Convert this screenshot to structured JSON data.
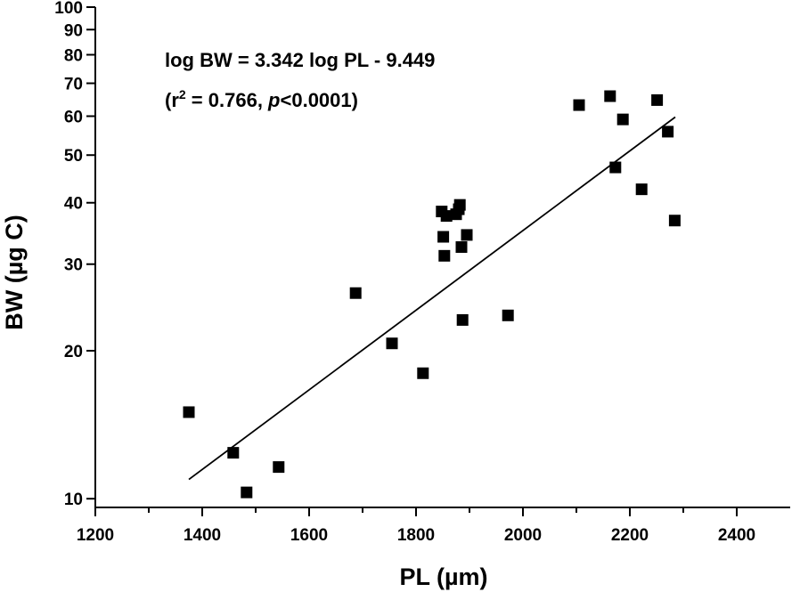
{
  "chart_data": {
    "type": "scatter",
    "xlabel": "PL (µm)",
    "ylabel": "BW (µg C)",
    "xlim": [
      1200,
      2500
    ],
    "ylim": [
      9.6,
      100
    ],
    "y_scale": "log",
    "x_ticks": [
      1200,
      1400,
      1600,
      1800,
      2000,
      2200,
      2400
    ],
    "x_tick_labels": [
      "1200",
      "1400",
      "1600",
      "1800",
      "2000",
      "2200",
      "2400"
    ],
    "x_minor_ticks": [
      1300,
      1500,
      1700,
      1900,
      2100,
      2300
    ],
    "y_ticks": [
      10,
      20,
      30,
      40,
      50,
      60,
      70,
      80,
      90,
      100
    ],
    "y_tick_labels": [
      "10",
      "20",
      "30",
      "40",
      "50",
      "60",
      "70",
      "80",
      "90",
      "100"
    ],
    "points": [
      {
        "x": 1375,
        "y": 15.0
      },
      {
        "x": 1458,
        "y": 12.4
      },
      {
        "x": 1483,
        "y": 10.3
      },
      {
        "x": 1543,
        "y": 11.6
      },
      {
        "x": 1687,
        "y": 26.2
      },
      {
        "x": 1755,
        "y": 20.7
      },
      {
        "x": 1813,
        "y": 18.0
      },
      {
        "x": 1848,
        "y": 38.4
      },
      {
        "x": 1851,
        "y": 34.1
      },
      {
        "x": 1853,
        "y": 31.2
      },
      {
        "x": 1857,
        "y": 37.6
      },
      {
        "x": 1875,
        "y": 37.9
      },
      {
        "x": 1880,
        "y": 38.8
      },
      {
        "x": 1882,
        "y": 39.6
      },
      {
        "x": 1885,
        "y": 32.5
      },
      {
        "x": 1887,
        "y": 23.1
      },
      {
        "x": 1895,
        "y": 34.4
      },
      {
        "x": 1972,
        "y": 23.6
      },
      {
        "x": 2105,
        "y": 63.2
      },
      {
        "x": 2163,
        "y": 65.9
      },
      {
        "x": 2173,
        "y": 47.2
      },
      {
        "x": 2187,
        "y": 59.1
      },
      {
        "x": 2222,
        "y": 42.6
      },
      {
        "x": 2251,
        "y": 64.7
      },
      {
        "x": 2271,
        "y": 55.8
      },
      {
        "x": 2284,
        "y": 36.8
      }
    ],
    "fit_line": {
      "x1": 1375,
      "x2": 2285
    },
    "equation": {
      "line1": "log BW = 3.342 log PL - 9.449",
      "line2_prefix": "(r",
      "line2_sup": "2",
      "line2_mid": " = 0.766, ",
      "line2_p": "p",
      "line2_suffix": "<0.0001)"
    }
  }
}
